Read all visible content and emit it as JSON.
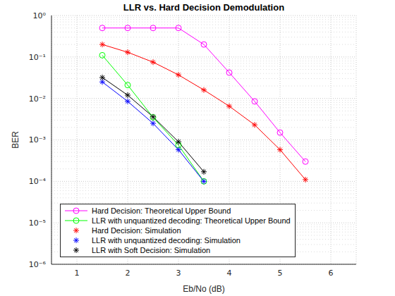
{
  "chart_data": {
    "type": "line",
    "title": "LLR vs. Hard Decision Demodulation",
    "x_label": "Eb/No (dB)",
    "y_label": "BER",
    "log": "y",
    "grid": true,
    "legend": "lower left",
    "x": [
      1.5,
      2,
      2.5,
      3,
      3.5,
      4,
      4.5,
      5,
      5.5
    ],
    "xlim": [
      0.5,
      6.5
    ],
    "xticks": [
      1,
      2,
      3,
      4,
      5,
      6
    ],
    "ylim": [
      1e-06,
      1
    ],
    "yticks": [
      {
        "value": 1e-06,
        "label": "10⁻⁶"
      },
      {
        "value": 1e-05,
        "label": "10⁻⁵"
      },
      {
        "value": 0.0001,
        "label": "10⁻⁴"
      },
      {
        "value": 0.001,
        "label": "10⁻³"
      },
      {
        "value": 0.01,
        "label": "10⁻²"
      },
      {
        "value": 0.1,
        "label": "10⁻¹"
      },
      {
        "value": 1,
        "label": "10⁰"
      }
    ],
    "series": [
      {
        "name": "Hard Decision: Theoretical Upper Bound",
        "color": "#ff00ff",
        "marker": "circle",
        "line_style": "solid",
        "values": [
          0.5,
          0.5,
          0.5,
          0.5,
          0.2,
          0.042,
          0.0085,
          0.0015,
          0.0003
        ]
      },
      {
        "name": "LLR with unquantized decoding: Theoretical Upper Bound",
        "color": "#00ff00",
        "marker": "circle",
        "line_style": "solid",
        "values": [
          0.11,
          0.021,
          0.0035,
          0.00075,
          0.0001,
          null,
          null,
          null,
          null
        ]
      },
      {
        "name": "Hard Decision: Simulation",
        "color": "#ff0000",
        "marker": "star",
        "line_style": "solid",
        "values": [
          0.2,
          0.13,
          0.075,
          0.037,
          0.016,
          0.0065,
          0.0023,
          0.00058,
          0.00011
        ]
      },
      {
        "name": "LLR with unquantized decoding: Simulation",
        "color": "#0000ff",
        "marker": "star",
        "line_style": "solid",
        "values": [
          0.025,
          0.0085,
          0.0025,
          0.00058,
          0.0001,
          null,
          null,
          null,
          null
        ]
      },
      {
        "name": "LLR with Soft Decision: Simulation",
        "color": "#000000",
        "marker": "star",
        "line_style": "solid",
        "values": [
          0.032,
          0.012,
          0.0036,
          0.0009,
          0.00017,
          null,
          null,
          null,
          null
        ]
      }
    ]
  }
}
